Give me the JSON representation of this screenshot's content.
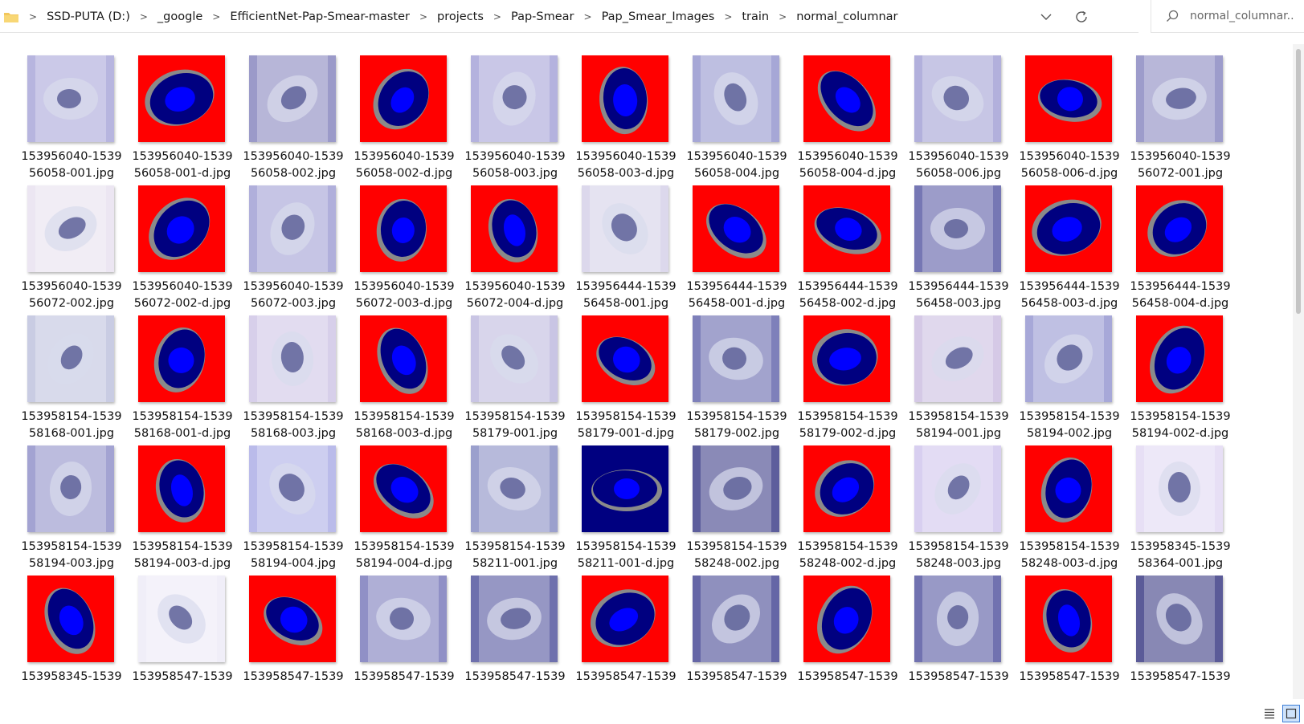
{
  "breadcrumb": [
    "SSD-PUTA (D:)",
    "_google",
    "EfficientNet-Pap-Smear-master",
    "projects",
    "Pap-Smear",
    "Pap_Smear_Images",
    "train",
    "normal_columnar"
  ],
  "search": {
    "placeholder": "normal_columnar..."
  },
  "colors": {
    "mask_bg": "#ff0000",
    "mask_cyto": "#000080",
    "mask_nucleus": "#0000ff",
    "mask_border": "#8a8a8a",
    "photo": "#b7b5dd"
  },
  "files": [
    {
      "l1": "153956040-1539",
      "l2": "56058-001.jpg",
      "kind": "photo",
      "bg": "#b7b5df"
    },
    {
      "l1": "153956040-1539",
      "l2": "56058-001-d.jpg",
      "kind": "mask",
      "bg": "#ff0000"
    },
    {
      "l1": "153956040-1539",
      "l2": "56058-002.jpg",
      "kind": "photo",
      "bg": "#9b9ac9"
    },
    {
      "l1": "153956040-1539",
      "l2": "56058-002-d.jpg",
      "kind": "mask",
      "bg": "#ff0000"
    },
    {
      "l1": "153956040-1539",
      "l2": "56058-003.jpg",
      "kind": "photo",
      "bg": "#b4b2de"
    },
    {
      "l1": "153956040-1539",
      "l2": "56058-003-d.jpg",
      "kind": "mask",
      "bg": "#ff0000"
    },
    {
      "l1": "153956040-1539",
      "l2": "56058-004.jpg",
      "kind": "photo",
      "bg": "#a6a7d6"
    },
    {
      "l1": "153956040-1539",
      "l2": "56058-004-d.jpg",
      "kind": "mask",
      "bg": "#ff0000"
    },
    {
      "l1": "153956040-1539",
      "l2": "56058-006.jpg",
      "kind": "photo",
      "bg": "#b2b0dc"
    },
    {
      "l1": "153956040-1539",
      "l2": "56058-006-d.jpg",
      "kind": "mask",
      "bg": "#ff0000"
    },
    {
      "l1": "153956040-1539",
      "l2": "56072-001.jpg",
      "kind": "photo",
      "bg": "#9d9ccb"
    },
    {
      "l1": "153956040-1539",
      "l2": "56072-002.jpg",
      "kind": "photo",
      "bg": "#ece6f2"
    },
    {
      "l1": "153956040-1539",
      "l2": "56072-002-d.jpg",
      "kind": "mask",
      "bg": "#ff0000"
    },
    {
      "l1": "153956040-1539",
      "l2": "56072-003.jpg",
      "kind": "photo",
      "bg": "#b0afdb"
    },
    {
      "l1": "153956040-1539",
      "l2": "56072-003-d.jpg",
      "kind": "mask",
      "bg": "#ff0000"
    },
    {
      "l1": "153956040-1539",
      "l2": "56072-004-d.jpg",
      "kind": "mask",
      "bg": "#ff0000"
    },
    {
      "l1": "153956444-1539",
      "l2": "56458-001.jpg",
      "kind": "photo",
      "bg": "#dcd8ec"
    },
    {
      "l1": "153956444-1539",
      "l2": "56458-001-d.jpg",
      "kind": "mask",
      "bg": "#ff0000"
    },
    {
      "l1": "153956444-1539",
      "l2": "56458-002-d.jpg",
      "kind": "mask",
      "bg": "#ff0000"
    },
    {
      "l1": "153956444-1539",
      "l2": "56458-003.jpg",
      "kind": "photo",
      "bg": "#7677b4"
    },
    {
      "l1": "153956444-1539",
      "l2": "56458-003-d.jpg",
      "kind": "mask",
      "bg": "#ff0000"
    },
    {
      "l1": "153956444-1539",
      "l2": "56458-004-d.jpg",
      "kind": "mask",
      "bg": "#ff0000"
    },
    {
      "l1": "153958154-1539",
      "l2": "58168-001.jpg",
      "kind": "photo",
      "bg": "#c9cce3"
    },
    {
      "l1": "153958154-1539",
      "l2": "58168-001-d.jpg",
      "kind": "mask",
      "bg": "#ff0000"
    },
    {
      "l1": "153958154-1539",
      "l2": "58168-003.jpg",
      "kind": "photo",
      "bg": "#d7cfea"
    },
    {
      "l1": "153958154-1539",
      "l2": "58168-003-d.jpg",
      "kind": "mask",
      "bg": "#ff0000"
    },
    {
      "l1": "153958154-1539",
      "l2": "58179-001.jpg",
      "kind": "photo",
      "bg": "#c9c5e4"
    },
    {
      "l1": "153958154-1539",
      "l2": "58179-001-d.jpg",
      "kind": "mask",
      "bg": "#ff0000"
    },
    {
      "l1": "153958154-1539",
      "l2": "58179-002.jpg",
      "kind": "photo",
      "bg": "#7e80ba"
    },
    {
      "l1": "153958154-1539",
      "l2": "58179-002-d.jpg",
      "kind": "mask",
      "bg": "#ff0000"
    },
    {
      "l1": "153958154-1539",
      "l2": "58194-001.jpg",
      "kind": "photo",
      "bg": "#d5c9e6"
    },
    {
      "l1": "153958154-1539",
      "l2": "58194-002.jpg",
      "kind": "photo",
      "bg": "#a7a8d8"
    },
    {
      "l1": "153958154-1539",
      "l2": "58194-002-d.jpg",
      "kind": "mask",
      "bg": "#ff0000"
    },
    {
      "l1": "153958154-1539",
      "l2": "58194-003.jpg",
      "kind": "photo",
      "bg": "#a3a3d2"
    },
    {
      "l1": "153958154-1539",
      "l2": "58194-003-d.jpg",
      "kind": "mask",
      "bg": "#ff0000"
    },
    {
      "l1": "153958154-1539",
      "l2": "58194-004.jpg",
      "kind": "photo",
      "bg": "#babbea"
    },
    {
      "l1": "153958154-1539",
      "l2": "58194-004-d.jpg",
      "kind": "mask",
      "bg": "#ff0000"
    },
    {
      "l1": "153958154-1539",
      "l2": "58211-001.jpg",
      "kind": "photo",
      "bg": "#9ba0cd"
    },
    {
      "l1": "153958154-1539",
      "l2": "58211-001-d.jpg",
      "kind": "mask",
      "bg": "#000080"
    },
    {
      "l1": "153958154-1539",
      "l2": "58248-002.jpg",
      "kind": "photo",
      "bg": "#5d5e9c"
    },
    {
      "l1": "153958154-1539",
      "l2": "58248-002-d.jpg",
      "kind": "mask",
      "bg": "#ff0000"
    },
    {
      "l1": "153958154-1539",
      "l2": "58248-003.jpg",
      "kind": "photo",
      "bg": "#d8cff0"
    },
    {
      "l1": "153958154-1539",
      "l2": "58248-003-d.jpg",
      "kind": "mask",
      "bg": "#ff0000"
    },
    {
      "l1": "153958345-1539",
      "l2": "58364-001.jpg",
      "kind": "photo",
      "bg": "#e7dff5"
    },
    {
      "l1": "153958345-1539",
      "l2": "",
      "kind": "mask",
      "bg": "#ff0000"
    },
    {
      "l1": "153958547-1539",
      "l2": "",
      "kind": "photo",
      "bg": "#f0eef8"
    },
    {
      "l1": "153958547-1539",
      "l2": "",
      "kind": "mask",
      "bg": "#ff0000"
    },
    {
      "l1": "153958547-1539",
      "l2": "",
      "kind": "photo",
      "bg": "#9090c6"
    },
    {
      "l1": "153958547-1539",
      "l2": "",
      "kind": "photo",
      "bg": "#6e70ad"
    },
    {
      "l1": "153958547-1539",
      "l2": "",
      "kind": "mask",
      "bg": "#ff0000"
    },
    {
      "l1": "153958547-1539",
      "l2": "",
      "kind": "photo",
      "bg": "#6566a6"
    },
    {
      "l1": "153958547-1539",
      "l2": "",
      "kind": "mask",
      "bg": "#ff0000"
    },
    {
      "l1": "153958547-1539",
      "l2": "",
      "kind": "photo",
      "bg": "#7172b0"
    },
    {
      "l1": "153958547-1539",
      "l2": "",
      "kind": "mask",
      "bg": "#ff0000"
    },
    {
      "l1": "153958547-1539",
      "l2": "",
      "kind": "photo",
      "bg": "#5b5b98"
    }
  ]
}
